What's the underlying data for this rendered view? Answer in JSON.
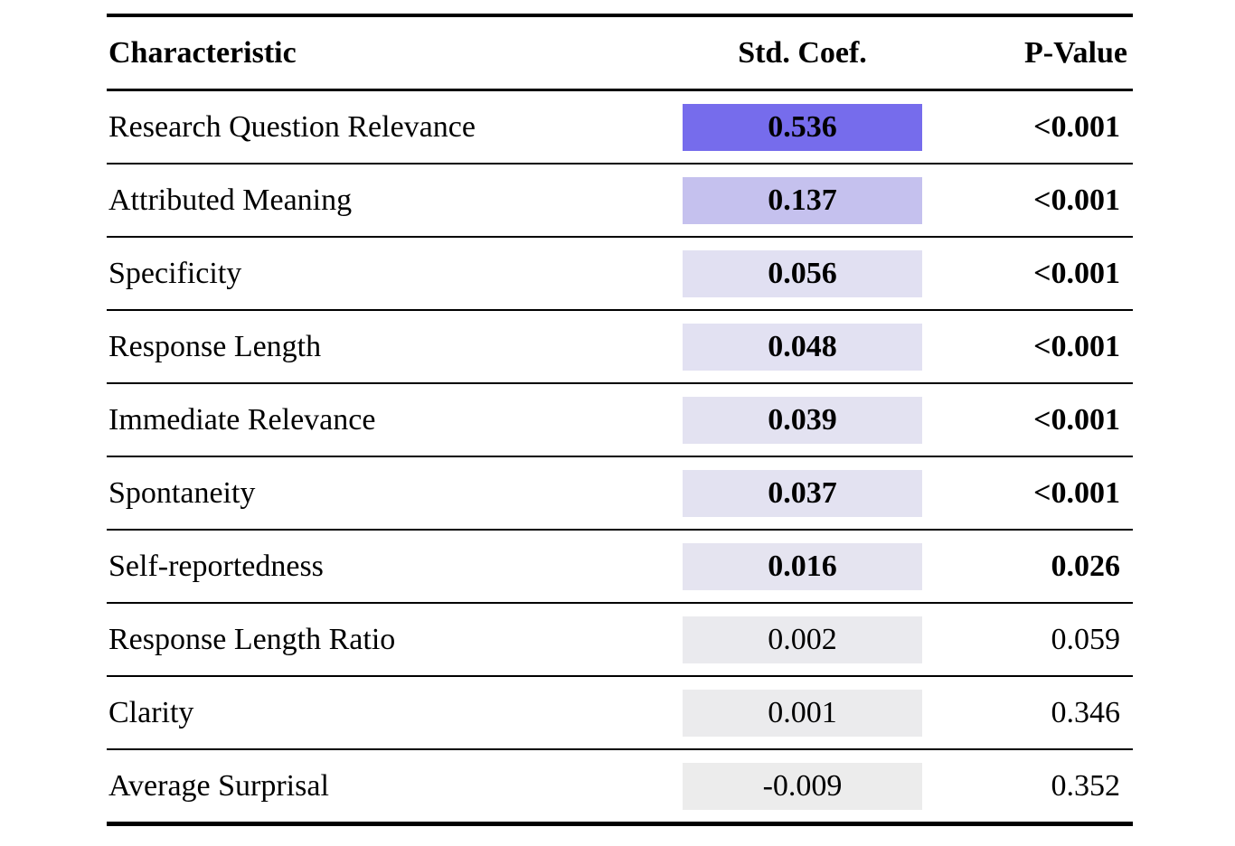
{
  "table": {
    "columns": {
      "characteristic": "Characteristic",
      "std_coef": "Std. Coef.",
      "p_value": "P-Value"
    },
    "rows": [
      {
        "characteristic": "Research Question Relevance",
        "std_coef": "0.536",
        "p_value": "<0.001",
        "coef_bg": "#766CEC",
        "significant_bold": true
      },
      {
        "characteristic": "Attributed Meaning",
        "std_coef": "0.137",
        "p_value": "<0.001",
        "coef_bg": "#C5C1EE",
        "significant_bold": true
      },
      {
        "characteristic": "Specificity",
        "std_coef": "0.056",
        "p_value": "<0.001",
        "coef_bg": "#E1E0F2",
        "significant_bold": true
      },
      {
        "characteristic": "Response Length",
        "std_coef": "0.048",
        "p_value": "<0.001",
        "coef_bg": "#E2E1F2",
        "significant_bold": true
      },
      {
        "characteristic": "Immediate Relevance",
        "std_coef": "0.039",
        "p_value": "<0.001",
        "coef_bg": "#E3E2F1",
        "significant_bold": true
      },
      {
        "characteristic": "Spontaneity",
        "std_coef": "0.037",
        "p_value": "<0.001",
        "coef_bg": "#E3E2F1",
        "significant_bold": true
      },
      {
        "characteristic": "Self-reportedness",
        "std_coef": "0.016",
        "p_value": "0.026",
        "coef_bg": "#E5E4F0",
        "significant_bold": true
      },
      {
        "characteristic": "Response Length Ratio",
        "std_coef": "0.002",
        "p_value": "0.059",
        "coef_bg": "#EAEAEE",
        "significant_bold": false
      },
      {
        "characteristic": "Clarity",
        "std_coef": "0.001",
        "p_value": "0.346",
        "coef_bg": "#EBEBED",
        "significant_bold": false
      },
      {
        "characteristic": "Average Surprisal",
        "std_coef": "-0.009",
        "p_value": "0.352",
        "coef_bg": "#ECECEC",
        "significant_bold": false
      }
    ],
    "colors": {
      "rule": "#000000",
      "text": "#000000",
      "max_coef_highlight": "#766CEC",
      "min_coef_highlight": "#ECECEC"
    }
  }
}
